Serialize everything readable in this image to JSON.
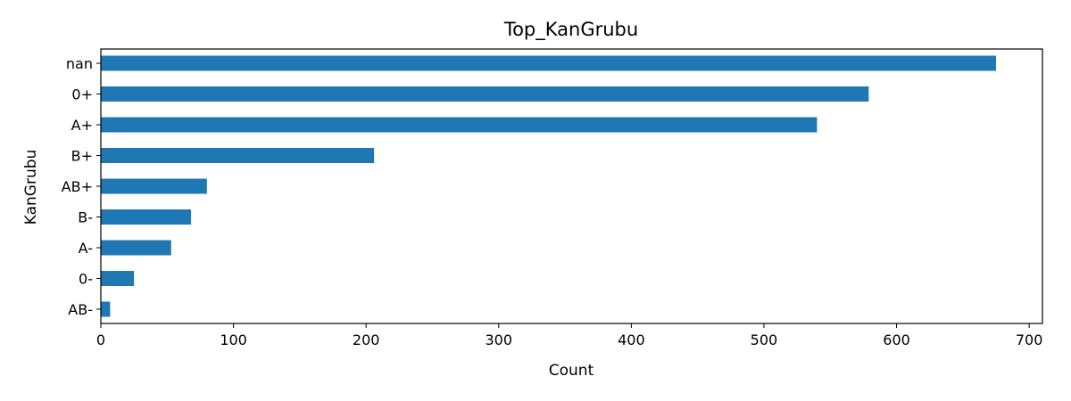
{
  "chart_data": {
    "type": "bar",
    "orientation": "horizontal",
    "title": "Top_KanGrubu",
    "xlabel": "Count",
    "ylabel": "KanGrubu",
    "categories": [
      "nan",
      "0+",
      "A+",
      "B+",
      "AB+",
      "B-",
      "A-",
      "0-",
      "AB-"
    ],
    "values": [
      675,
      579,
      540,
      206,
      80,
      68,
      53,
      25,
      7
    ],
    "xlim": [
      0,
      710
    ],
    "xticks": [
      0,
      100,
      200,
      300,
      400,
      500,
      600,
      700
    ],
    "grid": false,
    "bar_color": "#1f77b4"
  }
}
